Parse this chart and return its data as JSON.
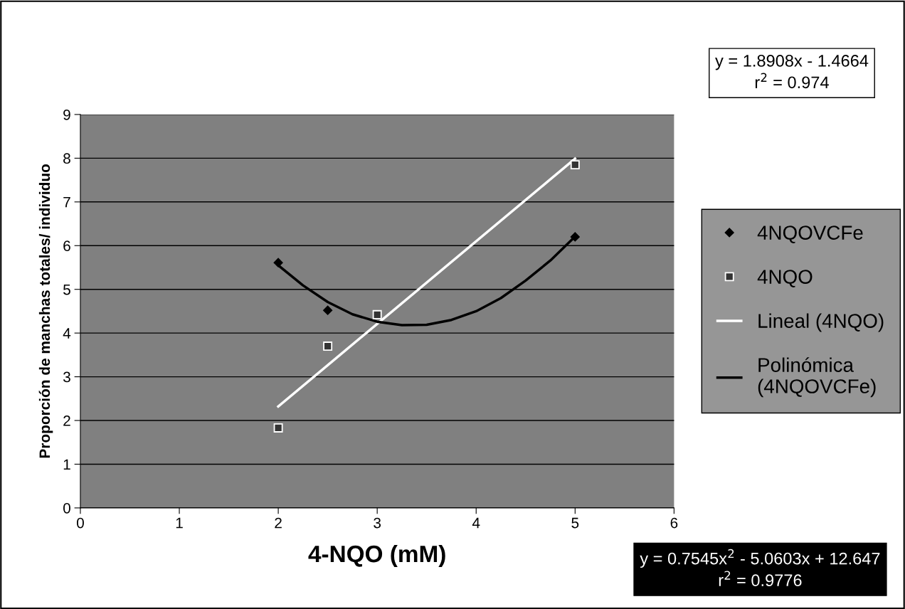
{
  "chart_data": {
    "type": "scatter",
    "xlabel": "4-NQO (mM)",
    "ylabel": "Proporción de manchas totales/ individuo",
    "xlim": [
      0,
      6
    ],
    "xticks": [
      0,
      1,
      2,
      3,
      4,
      5,
      6
    ],
    "ylim": [
      0,
      9
    ],
    "yticks": [
      0,
      1,
      2,
      3,
      4,
      5,
      6,
      7,
      8,
      9
    ],
    "grid": "y",
    "legend": "right",
    "series": [
      {
        "name": "4NQOVCFe",
        "marker": "diamond",
        "color": "#000000",
        "x": [
          2,
          2.5,
          3,
          5
        ],
        "values": [
          5.61,
          4.52,
          null,
          6.2
        ]
      },
      {
        "name": "4NQO",
        "marker": "square",
        "color": "#333333",
        "x": [
          2,
          2.5,
          3,
          5
        ],
        "values": [
          1.83,
          3.7,
          4.42,
          7.85
        ]
      },
      {
        "name": "Lineal (4NQO)",
        "type": "line",
        "marker": "none",
        "color": "#ffffff",
        "x": [
          2,
          5
        ],
        "values": [
          2.32,
          7.99
        ]
      },
      {
        "name": "Polinómica (4NQOVCFe)",
        "type": "line",
        "marker": "none",
        "color": "#000000",
        "x": [
          2,
          2.25,
          2.5,
          2.75,
          3,
          3.25,
          3.5,
          3.75,
          4,
          4.25,
          4.5,
          4.75,
          5
        ],
        "values": [
          5.55,
          5.09,
          4.71,
          4.43,
          4.26,
          4.18,
          4.19,
          4.3,
          4.5,
          4.8,
          5.2,
          5.66,
          6.21
        ]
      }
    ],
    "annotations": [
      "y = 1.8908x - 1.4664\nr$^{2}$ = 0.974",
      "y = 0.7545x$^{2}$ - 5.0603x + 12.647\nr$^{2}$ = 0.9776"
    ]
  }
}
